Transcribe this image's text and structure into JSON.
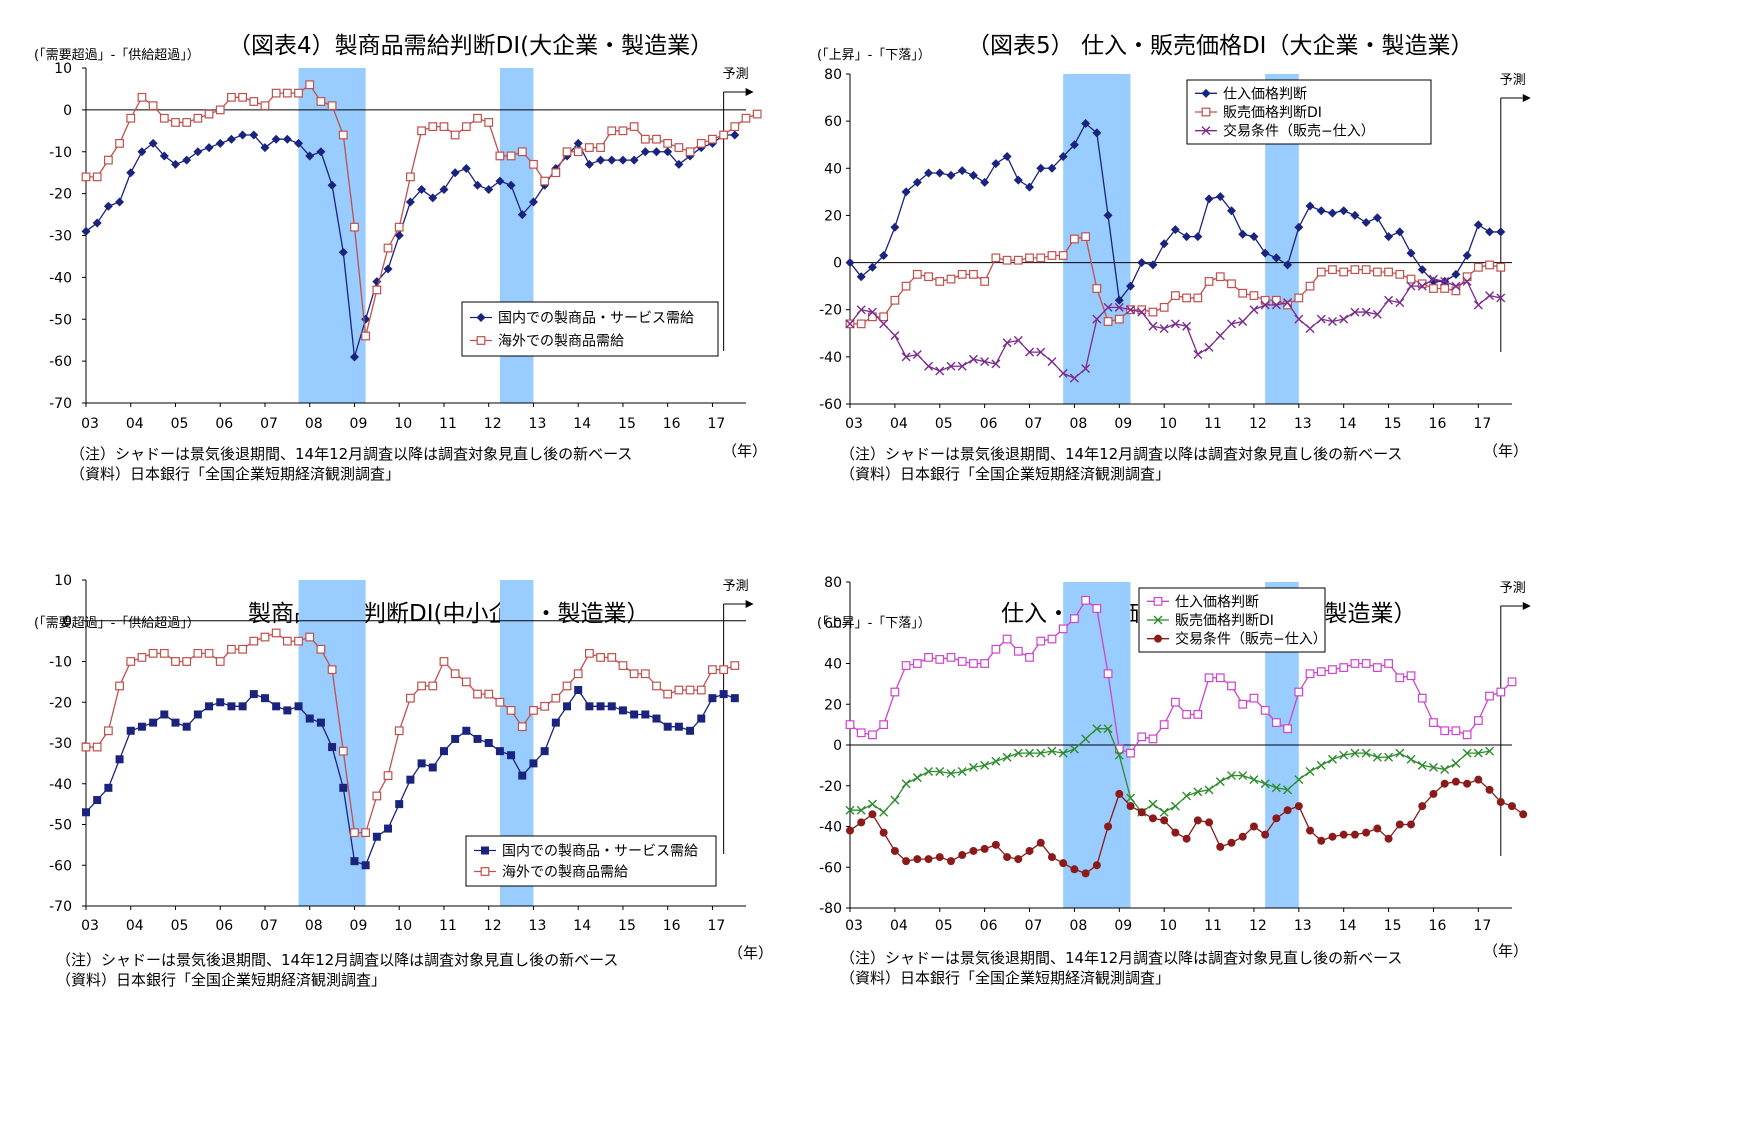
{
  "colors": {
    "shade": "#99CCFF",
    "navy": "#1A237E",
    "brick": "#C0504D",
    "purple": "#7B2C8E",
    "magenta": "#CC44CC",
    "green": "#2E8B2E",
    "maroon": "#8B1A1A"
  },
  "charts": [
    {
      "title": "（図表4）製商品需給判断DI(大企業・製造業）",
      "unit": "(「需要超過」-「供給超過」）",
      "forecast_label": "予測",
      "year_unit": "（年）",
      "note1": "（注）シャドーは景気後退期間、14年12月調査以降は調査対象見直し後の新ベース",
      "note2": "（資料）日本銀行「全国企業短期経済観測調査」",
      "chart_data": {
        "type": "line",
        "x_start": 2003.0,
        "x_step": 0.25,
        "xlim": [
          2003.0,
          2017.75
        ],
        "ylim": [
          -70,
          10
        ],
        "y_ticks": [
          10,
          0,
          -10,
          -20,
          -30,
          -40,
          -50,
          -60,
          -70
        ],
        "x_tick_labels": [
          "03",
          "04",
          "05",
          "06",
          "07",
          "08",
          "09",
          "10",
          "11",
          "12",
          "13",
          "14",
          "15",
          "16",
          "17"
        ],
        "shaded_periods": [
          [
            2007.75,
            2009.25
          ],
          [
            2012.25,
            2013.0
          ]
        ],
        "forecast_x": 2017.25,
        "legend_position": "bottom-right",
        "series": [
          {
            "name": "国内での製商品・サービス需給",
            "marker": "diamond",
            "color": "#1A237E",
            "values": [
              -29,
              -27,
              -23,
              -22,
              -15,
              -10,
              -8,
              -11,
              -13,
              -12,
              -10,
              -9,
              -8,
              -7,
              -6,
              -6,
              -9,
              -7,
              -7,
              -8,
              -11,
              -10,
              -18,
              -34,
              -59,
              -50,
              -41,
              -38,
              -30,
              -22,
              -19,
              -21,
              -19,
              -15,
              -14,
              -18,
              -19,
              -17,
              -18,
              -25,
              -22,
              -18,
              -14,
              -11,
              -8,
              -13,
              -12,
              -12,
              -12,
              -12,
              -10,
              -10,
              -10,
              -13,
              -11,
              -9,
              -8,
              -6,
              -6
            ]
          },
          {
            "name": "海外での製商品需給",
            "marker": "square-open",
            "color": "#C0504D",
            "values": [
              -16,
              -16,
              -12,
              -8,
              -2,
              3,
              1,
              -2,
              -3,
              -3,
              -2,
              -1,
              0,
              3,
              3,
              2,
              1,
              4,
              4,
              4,
              6,
              2,
              1,
              -6,
              -28,
              -54,
              -43,
              -33,
              -28,
              -16,
              -5,
              -4,
              -4,
              -6,
              -4,
              -2,
              -3,
              -11,
              -11,
              -10,
              -13,
              -17,
              -15,
              -10,
              -10,
              -9,
              -9,
              -5,
              -5,
              -4,
              -7,
              -7,
              -8,
              -9,
              -10,
              -8,
              -7,
              -6,
              -4,
              -2,
              -1
            ]
          }
        ]
      }
    },
    {
      "title": "（図表5） 仕入・販売価格DI（大企業・製造業）",
      "unit": "(「上昇」-「下落」）",
      "forecast_label": "予測",
      "year_unit": "（年）",
      "note1": "（注）シャドーは景気後退期間、14年12月調査以降は調査対象見直し後の新ベース",
      "note2": "（資料）日本銀行「全国企業短期経済観測調査」",
      "chart_data": {
        "type": "line",
        "x_start": 2003.0,
        "x_step": 0.25,
        "xlim": [
          2003.0,
          2017.75
        ],
        "ylim": [
          -60,
          80
        ],
        "y_ticks": [
          80,
          60,
          40,
          20,
          0,
          -20,
          -40,
          -60
        ],
        "x_tick_labels": [
          "03",
          "04",
          "05",
          "06",
          "07",
          "08",
          "09",
          "10",
          "11",
          "12",
          "13",
          "14",
          "15",
          "16",
          "17"
        ],
        "shaded_periods": [
          [
            2007.75,
            2009.25
          ],
          [
            2012.25,
            2013.0
          ]
        ],
        "forecast_x": 2017.5,
        "legend_position": "top-right",
        "series": [
          {
            "name": "仕入価格判断",
            "marker": "diamond",
            "color": "#1A237E",
            "values": [
              0,
              -6,
              -2,
              3,
              15,
              30,
              34,
              38,
              38,
              37,
              39,
              37,
              34,
              42,
              45,
              35,
              32,
              40,
              40,
              45,
              50,
              59,
              55,
              20,
              -16,
              -10,
              0,
              -1,
              8,
              14,
              11,
              11,
              27,
              28,
              22,
              12,
              11,
              4,
              2,
              -1,
              15,
              24,
              22,
              21,
              22,
              20,
              17,
              19,
              11,
              13,
              4,
              -3,
              -8,
              -8,
              -5,
              3,
              16,
              13,
              13
            ]
          },
          {
            "name": "販売価格判断DI",
            "marker": "square-open",
            "color": "#C0504D",
            "values": [
              -26,
              -26,
              -23,
              -23,
              -16,
              -10,
              -5,
              -6,
              -8,
              -7,
              -5,
              -5,
              -8,
              2,
              1,
              1,
              2,
              2,
              3,
              3,
              10,
              11,
              -11,
              -25,
              -24,
              -20,
              -20,
              -21,
              -19,
              -14,
              -15,
              -15,
              -8,
              -6,
              -9,
              -13,
              -14,
              -16,
              -16,
              -18,
              -15,
              -10,
              -4,
              -3,
              -4,
              -3,
              -3,
              -4,
              -4,
              -5,
              -7,
              -9,
              -11,
              -11,
              -12,
              -6,
              -2,
              -1,
              -2
            ]
          },
          {
            "name": "交易条件（販売−仕入）",
            "marker": "x",
            "color": "#7B2C8E",
            "values": [
              -26,
              -20,
              -21,
              -26,
              -31,
              -40,
              -39,
              -44,
              -46,
              -44,
              -44,
              -41,
              -42,
              -43,
              -34,
              -33,
              -38,
              -38,
              -42,
              -47,
              -49,
              -45,
              -24,
              -19,
              -19,
              -20,
              -21,
              -27,
              -28,
              -26,
              -27,
              -39,
              -36,
              -31,
              -26,
              -25,
              -20,
              -18,
              -18,
              -17,
              -24,
              -28,
              -24,
              -25,
              -24,
              -21,
              -21,
              -22,
              -16,
              -17,
              -10,
              -10,
              -7,
              -8,
              -10,
              -8,
              -18,
              -14,
              -15
            ]
          }
        ]
      }
    },
    {
      "title": "製商品需給判断DI(中小企業・製造業）",
      "unit": "(「需要超過」-「供給超過」）",
      "forecast_label": "予測",
      "year_unit": "（年）",
      "note1": "（注）シャドーは景気後退期間、14年12月調査以降は調査対象見直し後の新ベース",
      "note2": "（資料）日本銀行「全国企業短期経済観測調査」",
      "chart_data": {
        "type": "line",
        "x_start": 2003.0,
        "x_step": 0.25,
        "xlim": [
          2003.0,
          2017.75
        ],
        "ylim": [
          -70,
          10
        ],
        "y_ticks": [
          10,
          0,
          -10,
          -20,
          -30,
          -40,
          -50,
          -60,
          -70
        ],
        "x_tick_labels": [
          "03",
          "04",
          "05",
          "06",
          "07",
          "08",
          "09",
          "10",
          "11",
          "12",
          "13",
          "14",
          "15",
          "16",
          "17"
        ],
        "shaded_periods": [
          [
            2007.75,
            2009.25
          ],
          [
            2012.25,
            2013.0
          ]
        ],
        "forecast_x": 2017.25,
        "legend_position": "bottom-right",
        "series": [
          {
            "name": "国内での製商品・サービス需給",
            "marker": "square",
            "color": "#1A237E",
            "values": [
              -47,
              -44,
              -41,
              -34,
              -27,
              -26,
              -25,
              -23,
              -25,
              -26,
              -23,
              -21,
              -20,
              -21,
              -21,
              -18,
              -19,
              -21,
              -22,
              -21,
              -24,
              -25,
              -31,
              -41,
              -59,
              -60,
              -53,
              -51,
              -45,
              -39,
              -35,
              -36,
              -32,
              -29,
              -27,
              -29,
              -30,
              -32,
              -33,
              -38,
              -35,
              -32,
              -25,
              -21,
              -17,
              -21,
              -21,
              -21,
              -22,
              -23,
              -23,
              -24,
              -26,
              -26,
              -27,
              -24,
              -19,
              -18,
              -19
            ]
          },
          {
            "name": "海外での製商品需給",
            "marker": "square-open",
            "color": "#C0504D",
            "values": [
              -31,
              -31,
              -27,
              -16,
              -10,
              -9,
              -8,
              -8,
              -10,
              -10,
              -8,
              -8,
              -10,
              -7,
              -7,
              -5,
              -4,
              -3,
              -5,
              -5,
              -4,
              -7,
              -12,
              -32,
              -52,
              -52,
              -43,
              -38,
              -27,
              -19,
              -16,
              -16,
              -10,
              -13,
              -15,
              -18,
              -18,
              -20,
              -22,
              -26,
              -22,
              -21,
              -19,
              -16,
              -13,
              -8,
              -9,
              -9,
              -11,
              -13,
              -13,
              -16,
              -18,
              -17,
              -17,
              -17,
              -12,
              -12,
              -11
            ]
          }
        ]
      }
    },
    {
      "title": "仕入・販売価格DI（中小企業・製造業）",
      "unit": "(「上昇」-「下落」）",
      "forecast_label": "予測",
      "year_unit": "（年）",
      "note1": "（注）シャドーは景気後退期間、14年12月調査以降は調査対象見直し後の新ベース",
      "note2": "（資料）日本銀行「全国企業短期経済観測調査」",
      "chart_data": {
        "type": "line",
        "x_start": 2003.0,
        "x_step": 0.25,
        "xlim": [
          2003.0,
          2017.75
        ],
        "ylim": [
          -80,
          80
        ],
        "y_ticks": [
          80,
          60,
          40,
          20,
          0,
          -20,
          -40,
          -60,
          -80
        ],
        "x_tick_labels": [
          "03",
          "04",
          "05",
          "06",
          "07",
          "08",
          "09",
          "10",
          "11",
          "12",
          "13",
          "14",
          "15",
          "16",
          "17"
        ],
        "shaded_periods": [
          [
            2007.75,
            2009.25
          ],
          [
            2012.25,
            2013.0
          ]
        ],
        "forecast_x": 2017.5,
        "legend_position": "top-right",
        "series": [
          {
            "name": "仕入価格判断",
            "marker": "square-open",
            "color": "#CC44CC",
            "values": [
              10,
              6,
              5,
              10,
              26,
              39,
              40,
              43,
              42,
              43,
              41,
              40,
              40,
              47,
              52,
              46,
              43,
              51,
              52,
              57,
              62,
              71,
              67,
              35,
              -2,
              -4,
              4,
              3,
              10,
              21,
              15,
              15,
              33,
              33,
              29,
              20,
              23,
              17,
              11,
              8,
              26,
              35,
              36,
              37,
              38,
              40,
              40,
              38,
              40,
              33,
              34,
              23,
              11,
              7,
              7,
              5,
              12,
              24,
              26,
              31
            ]
          },
          {
            "name": "販売価格判断DI",
            "marker": "x",
            "color": "#2E8B2E",
            "values": [
              -32,
              -32,
              -29,
              -33,
              -27,
              -19,
              -16,
              -13,
              -13,
              -14,
              -13,
              -11,
              -10,
              -8,
              -6,
              -4,
              -4,
              -4,
              -3,
              -4,
              -2,
              3,
              8,
              8,
              -5,
              -26,
              -33,
              -29,
              -33,
              -30,
              -25,
              -23,
              -22,
              -18,
              -15,
              -15,
              -17,
              -19,
              -21,
              -22,
              -17,
              -13,
              -10,
              -7,
              -5,
              -4,
              -4,
              -6,
              -6,
              -4,
              -7,
              -10,
              -11,
              -12,
              -9,
              -4,
              -4,
              -3
            ]
          },
          {
            "name": "交易条件（販売−仕入）",
            "marker": "circle",
            "color": "#8B1A1A",
            "values": [
              -42,
              -38,
              -34,
              -43,
              -52,
              -57,
              -56,
              -56,
              -55,
              -57,
              -54,
              -52,
              -51,
              -49,
              -55,
              -56,
              -52,
              -48,
              -55,
              -58,
              -61,
              -63,
              -59,
              -40,
              -24,
              -30,
              -33,
              -36,
              -37,
              -43,
              -46,
              -37,
              -38,
              -50,
              -48,
              -45,
              -40,
              -44,
              -36,
              -32,
              -30,
              -42,
              -47,
              -45,
              -44,
              -44,
              -43,
              -41,
              -46,
              -39,
              -39,
              -30,
              -24,
              -19,
              -18,
              -19,
              -17,
              -22,
              -28,
              -30,
              -34
            ]
          }
        ]
      }
    }
  ]
}
